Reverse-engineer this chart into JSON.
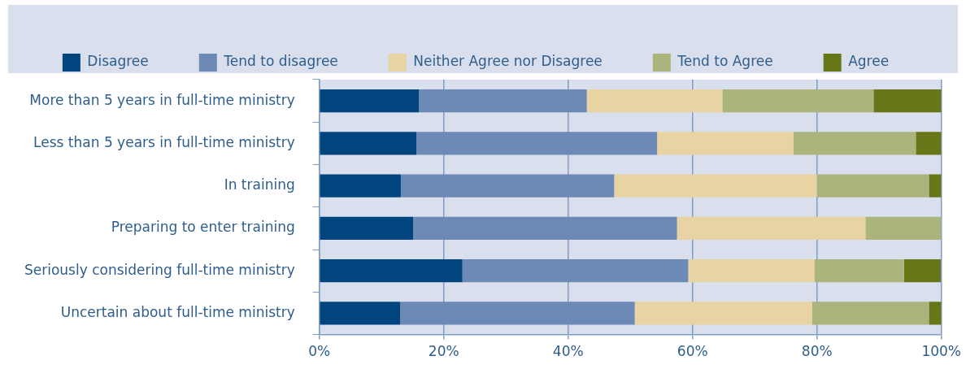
{
  "chart_data": {
    "type": "bar",
    "orientation": "horizontal",
    "stacked": true,
    "categories": [
      "More than 5 years in full-time ministry",
      "Less than 5 years in full-time ministry",
      "In training",
      "Preparing to enter training",
      "Seriously considering full-time ministry",
      "Uncertain about full-time ministry"
    ],
    "series": [
      {
        "name": "Disagree",
        "color": "#00457e",
        "values": [
          16.0,
          15.6,
          13.1,
          15.1,
          23.0,
          13.0
        ]
      },
      {
        "name": "Tend to disagree",
        "color": "#6c8ab5",
        "values": [
          27.0,
          38.7,
          34.3,
          42.4,
          36.3,
          37.7
        ]
      },
      {
        "name": "Neither Agree nor Disagree",
        "color": "#e8d3a2",
        "values": [
          21.8,
          21.9,
          32.6,
          30.3,
          20.3,
          28.5
        ]
      },
      {
        "name": "Tend to Agree",
        "color": "#abb47c",
        "values": [
          24.3,
          19.7,
          18.0,
          12.2,
          14.4,
          18.8
        ]
      },
      {
        "name": "Agree",
        "color": "#677616",
        "values": [
          10.9,
          4.1,
          2.0,
          0,
          5.9,
          2.0
        ]
      }
    ],
    "xlim": [
      0,
      100
    ],
    "xticks": [
      {
        "value": 0,
        "label": "0%"
      },
      {
        "value": 20,
        "label": "20%"
      },
      {
        "value": 40,
        "label": "40%"
      },
      {
        "value": 60,
        "label": "60%"
      },
      {
        "value": 80,
        "label": "80%"
      },
      {
        "value": 100,
        "label": "100%"
      }
    ],
    "grid": "x",
    "legend": "top"
  }
}
